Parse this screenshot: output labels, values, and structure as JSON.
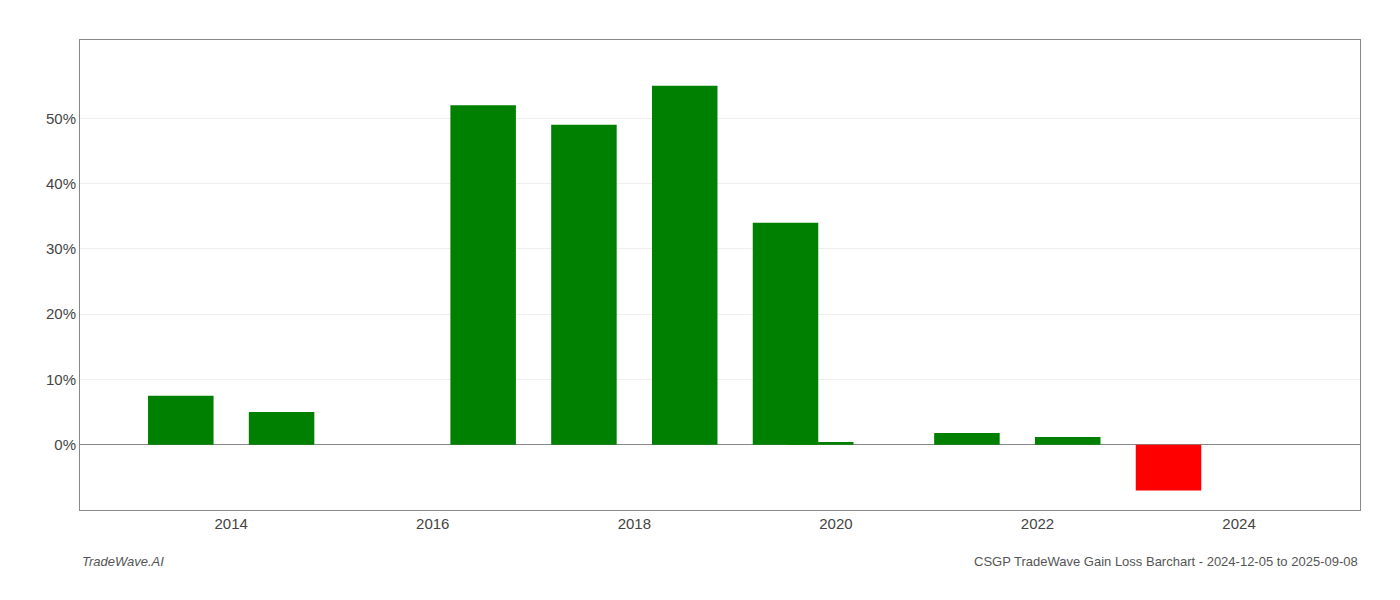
{
  "chart_data": {
    "type": "bar",
    "x": [
      2013.5,
      2014.5,
      2016.5,
      2017.5,
      2018.5,
      2019.5,
      2019.85,
      2021.3,
      2022.3,
      2023.3
    ],
    "values": [
      7.5,
      5.0,
      52.0,
      49.0,
      55.0,
      34.0,
      0.4,
      1.8,
      1.2,
      -7.0
    ],
    "colors": [
      "#008000",
      "#008000",
      "#008000",
      "#008000",
      "#008000",
      "#008000",
      "#008000",
      "#008000",
      "#008000",
      "#ff0000"
    ],
    "xlim": [
      2012.5,
      2025.2
    ],
    "ylim": [
      -10,
      62
    ],
    "xticks": [
      2014,
      2016,
      2018,
      2020,
      2022,
      2024
    ],
    "yticks": [
      {
        "value": 0,
        "label": "0%"
      },
      {
        "value": 10,
        "label": "10%"
      },
      {
        "value": 20,
        "label": "20%"
      },
      {
        "value": 30,
        "label": "30%"
      },
      {
        "value": 40,
        "label": "40%"
      },
      {
        "value": 50,
        "label": "50%"
      }
    ],
    "grid": true,
    "annotations": [
      "TradeWave.AI",
      "CSGP TradeWave Gain Loss Barchart - 2024-12-05 to 2025-09-08"
    ]
  }
}
